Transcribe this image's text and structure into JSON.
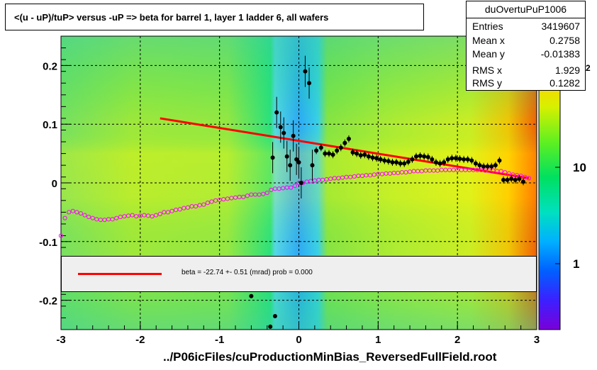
{
  "title": "<(u - uP)/tuP>  versus  -uP => beta for barrel 1, layer 1 ladder 6, all wafers",
  "stats": {
    "name": "duOvertuPuP1006",
    "rows": [
      {
        "label": "Entries",
        "value": "3419607"
      },
      {
        "label": "Mean x",
        "value": "0.2758"
      },
      {
        "label": "Mean y",
        "value": "-0.01383"
      },
      {
        "label": "RMS x",
        "value": "1.929"
      },
      {
        "label": "RMS y",
        "value": "0.1282"
      }
    ]
  },
  "fit_legend": {
    "text": "beta =  -22.74 +-  0.51 (mrad) prob = 0.000",
    "color": "#ff0000"
  },
  "footer": "../P06icFiles/cuProductionMinBias_ReversedFullField.root",
  "colors": {
    "fit_line": "#ff0000",
    "profile_black": "#000000",
    "profile_pink": "#ff00ff",
    "grid": "#000000"
  },
  "chart_data": {
    "type": "heatmap",
    "xlim": [
      -3,
      3
    ],
    "ylim": [
      -0.25,
      0.25
    ],
    "x_ticks": [
      "-3",
      "-2",
      "-1",
      "0",
      "1",
      "2",
      "3"
    ],
    "y_ticks": [
      "-0.2",
      "-0.1",
      "0",
      "0.1",
      "0.2"
    ],
    "z_ticks": [
      "1",
      "10"
    ],
    "z_partial_label": "2",
    "grid": true,
    "fit_line": {
      "x": [
        -1.75,
        2.9
      ],
      "y": [
        0.11,
        0.008
      ]
    },
    "black_profile": {
      "x": [
        -0.33,
        -0.28,
        -0.23,
        -0.19,
        -0.15,
        -0.11,
        -0.07,
        -0.03,
        0.0,
        0.03,
        0.08,
        0.13,
        0.17,
        0.22,
        0.28,
        0.33,
        0.38,
        0.43,
        0.48,
        0.53,
        0.58,
        0.63,
        0.68,
        0.73,
        0.78,
        0.83,
        0.88,
        0.93,
        0.98,
        1.03,
        1.08,
        1.13,
        1.18,
        1.23,
        1.28,
        1.33,
        1.38,
        1.43,
        1.48,
        1.53,
        1.58,
        1.63,
        1.68,
        1.73,
        1.78,
        1.83,
        1.88,
        1.93,
        1.98,
        2.03,
        2.08,
        2.13,
        2.18,
        2.23,
        2.28,
        2.33,
        2.38,
        2.43,
        2.48,
        2.53,
        2.58,
        2.63,
        2.68,
        2.73,
        2.78,
        2.83
      ],
      "y": [
        0.043,
        0.12,
        0.095,
        0.085,
        0.045,
        0.03,
        0.08,
        0.04,
        0.035,
        0.0,
        0.19,
        0.17,
        0.03,
        0.055,
        0.06,
        0.05,
        0.05,
        0.048,
        0.055,
        0.06,
        0.068,
        0.075,
        0.052,
        0.05,
        0.047,
        0.048,
        0.045,
        0.043,
        0.042,
        0.04,
        0.038,
        0.037,
        0.035,
        0.035,
        0.033,
        0.033,
        0.036,
        0.04,
        0.045,
        0.046,
        0.045,
        0.044,
        0.04,
        0.035,
        0.033,
        0.035,
        0.04,
        0.042,
        0.042,
        0.041,
        0.04,
        0.04,
        0.038,
        0.033,
        0.03,
        0.028,
        0.028,
        0.028,
        0.03,
        0.038,
        0.005,
        0.005,
        0.007,
        0.005,
        0.007,
        0.002
      ],
      "outliers": {
        "x": [
          -0.6,
          -0.3,
          -0.36
        ],
        "y": [
          -0.193,
          -0.227,
          -0.245
        ]
      }
    },
    "pink_profile": {
      "x": [
        -3.0,
        -2.95,
        -2.9,
        -2.85,
        -2.8,
        -2.75,
        -2.7,
        -2.65,
        -2.6,
        -2.55,
        -2.5,
        -2.45,
        -2.4,
        -2.35,
        -2.3,
        -2.25,
        -2.2,
        -2.15,
        -2.1,
        -2.05,
        -2.0,
        -1.95,
        -1.9,
        -1.85,
        -1.8,
        -1.75,
        -1.7,
        -1.65,
        -1.6,
        -1.55,
        -1.5,
        -1.45,
        -1.4,
        -1.35,
        -1.3,
        -1.25,
        -1.2,
        -1.15,
        -1.1,
        -1.05,
        -1.0,
        -0.95,
        -0.9,
        -0.85,
        -0.8,
        -0.75,
        -0.7,
        -0.65,
        -0.6,
        -0.55,
        -0.5,
        -0.45,
        -0.4,
        -0.35,
        -0.3,
        -0.25,
        -0.2,
        -0.15,
        -0.1,
        -0.05,
        0.0,
        0.05,
        0.1,
        0.15,
        0.2,
        0.25,
        0.3,
        0.35,
        0.4,
        0.45,
        0.5,
        0.55,
        0.6,
        0.65,
        0.7,
        0.75,
        0.8,
        0.85,
        0.9,
        0.95,
        1.0,
        1.05,
        1.1,
        1.15,
        1.2,
        1.25,
        1.3,
        1.35,
        1.4,
        1.45,
        1.5,
        1.55,
        1.6,
        1.65,
        1.7,
        1.75,
        1.8,
        1.85,
        1.9,
        1.95,
        2.0,
        2.05,
        2.1,
        2.15,
        2.2,
        2.25,
        2.3,
        2.35,
        2.4,
        2.45,
        2.5,
        2.55,
        2.6,
        2.65,
        2.7,
        2.75,
        2.8,
        2.85,
        2.9
      ],
      "y": [
        -0.09,
        -0.06,
        -0.05,
        -0.048,
        -0.05,
        -0.052,
        -0.055,
        -0.058,
        -0.06,
        -0.062,
        -0.063,
        -0.063,
        -0.062,
        -0.062,
        -0.06,
        -0.058,
        -0.057,
        -0.056,
        -0.055,
        -0.057,
        -0.056,
        -0.055,
        -0.056,
        -0.057,
        -0.055,
        -0.053,
        -0.05,
        -0.05,
        -0.048,
        -0.046,
        -0.045,
        -0.043,
        -0.042,
        -0.04,
        -0.04,
        -0.038,
        -0.037,
        -0.034,
        -0.032,
        -0.03,
        -0.029,
        -0.028,
        -0.027,
        -0.026,
        -0.025,
        -0.024,
        -0.024,
        -0.022,
        -0.02,
        -0.02,
        -0.02,
        -0.019,
        -0.017,
        -0.012,
        -0.01,
        -0.01,
        -0.009,
        -0.008,
        -0.008,
        -0.005,
        0.0,
        0.0,
        0.002,
        0.003,
        0.004,
        0.005,
        0.005,
        0.006,
        0.007,
        0.008,
        0.008,
        0.009,
        0.01,
        0.01,
        0.011,
        0.012,
        0.012,
        0.013,
        0.013,
        0.014,
        0.015,
        0.015,
        0.016,
        0.016,
        0.017,
        0.017,
        0.018,
        0.018,
        0.019,
        0.02,
        0.02,
        0.02,
        0.021,
        0.021,
        0.021,
        0.021,
        0.022,
        0.022,
        0.022,
        0.022,
        0.022,
        0.022,
        0.022,
        0.022,
        0.022,
        0.022,
        0.022,
        0.021,
        0.021,
        0.021,
        0.02,
        0.02,
        0.018,
        0.016,
        0.014,
        0.013,
        0.012,
        0.01,
        0.008
      ]
    }
  }
}
